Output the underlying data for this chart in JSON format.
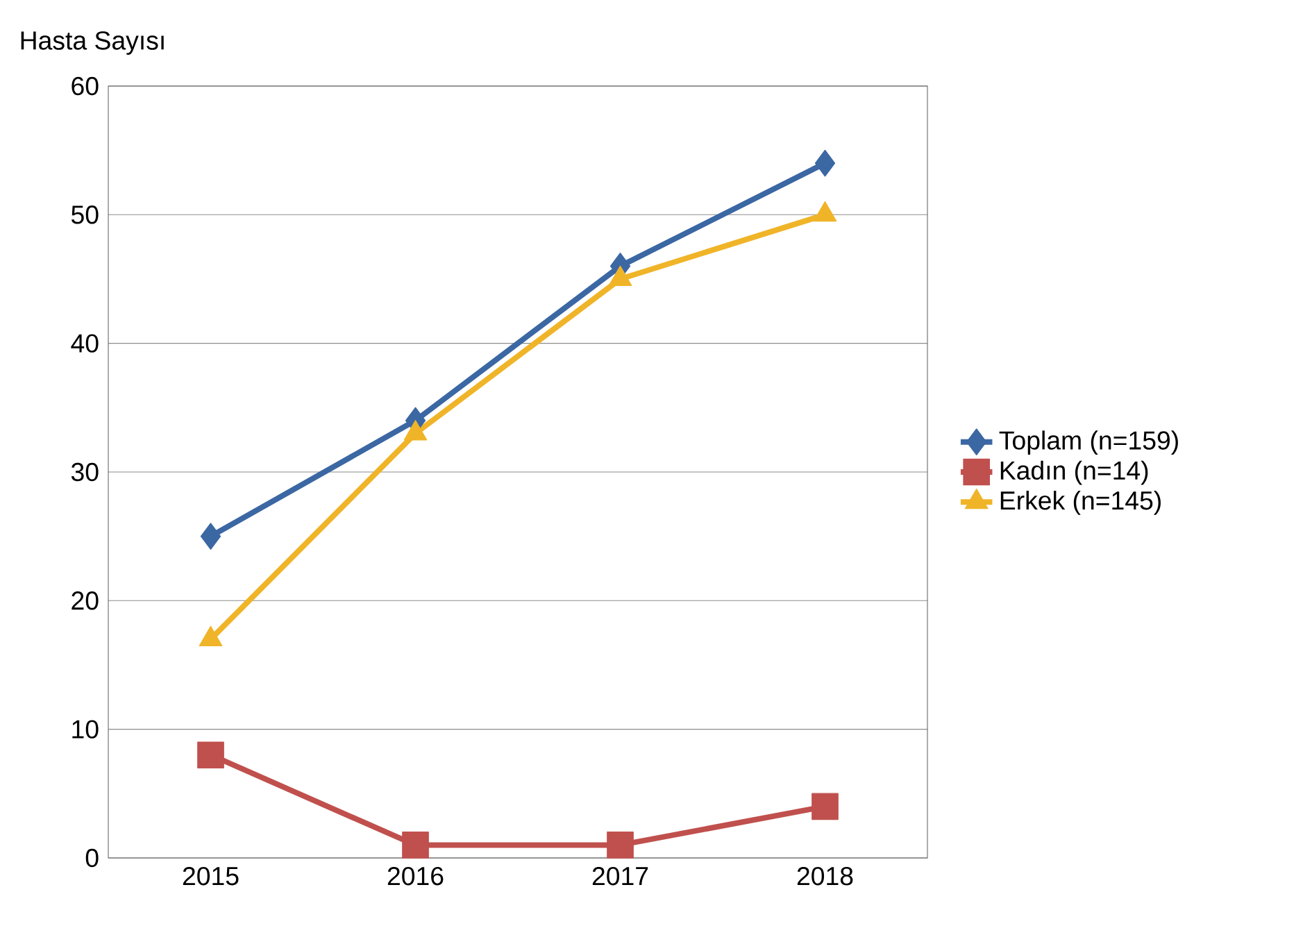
{
  "chart_data": {
    "type": "line",
    "ylabel": "Hasta Sayısı",
    "categories": [
      "2015",
      "2016",
      "2017",
      "2018"
    ],
    "series": [
      {
        "name": "Toplam (n=159)",
        "color": "#3b67a3",
        "marker": "diamond",
        "values": [
          25,
          34,
          46,
          54
        ]
      },
      {
        "name": "Kadın (n=14)",
        "color": "#c0504d",
        "marker": "square",
        "values": [
          8,
          1,
          1,
          4
        ]
      },
      {
        "name": "Erkek (n=145)",
        "color": "#f0b428",
        "marker": "triangle",
        "values": [
          17,
          33,
          45,
          50
        ]
      }
    ],
    "ylim": [
      0,
      60
    ],
    "yticks": [
      0,
      10,
      20,
      30,
      40,
      50,
      60
    ],
    "grid": "y",
    "legend": "right"
  }
}
